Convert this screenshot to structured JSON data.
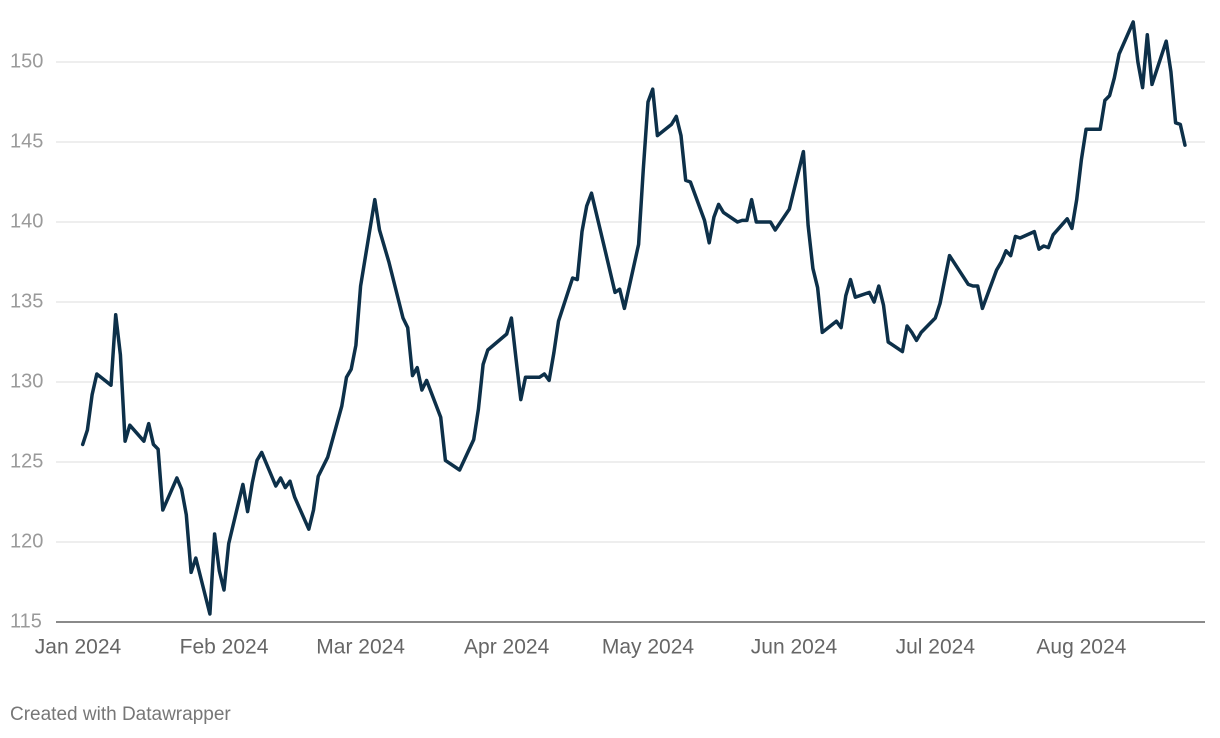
{
  "chart_data": {
    "type": "line",
    "x": [
      1,
      2,
      3,
      4,
      7,
      8,
      9,
      10,
      11,
      14,
      15,
      16,
      17,
      18,
      21,
      22,
      23,
      24,
      25,
      28,
      29,
      30,
      31,
      32,
      35,
      36,
      37,
      38,
      39,
      42,
      43,
      44,
      45,
      46,
      49,
      50,
      51,
      53,
      56,
      57,
      58,
      59,
      60,
      63,
      64,
      66,
      69,
      70,
      71,
      72,
      73,
      74,
      77,
      78,
      81,
      84,
      85,
      86,
      87,
      91,
      92,
      93,
      94,
      95,
      98,
      99,
      100,
      101,
      102,
      105,
      106,
      107,
      108,
      109,
      112,
      114,
      115,
      116,
      119,
      120,
      121,
      122,
      123,
      126,
      127,
      128,
      129,
      130,
      133,
      134,
      135,
      136,
      137,
      140,
      141,
      142,
      143,
      144,
      147,
      148,
      151,
      152,
      154,
      155,
      156,
      157,
      158,
      161,
      162,
      163,
      164,
      165,
      168,
      169,
      170,
      171,
      172,
      175,
      176,
      177,
      178,
      179,
      182,
      183,
      185,
      189,
      190,
      191,
      192,
      195,
      196,
      197,
      198,
      199,
      200,
      203,
      204,
      205,
      206,
      207,
      210,
      211,
      212,
      213,
      214,
      217,
      218,
      219,
      220,
      221,
      224,
      225,
      226,
      227,
      228,
      231,
      232,
      233,
      234,
      235
    ],
    "values": [
      126.1,
      127.0,
      129.2,
      130.5,
      129.8,
      134.2,
      131.7,
      126.3,
      127.3,
      126.3,
      127.4,
      126.1,
      125.8,
      122.0,
      124.0,
      123.3,
      121.7,
      118.1,
      119.0,
      115.5,
      120.5,
      118.2,
      117.0,
      119.9,
      123.6,
      121.9,
      123.7,
      125.1,
      125.6,
      123.5,
      124.0,
      123.4,
      123.8,
      122.8,
      120.8,
      122.0,
      124.1,
      125.3,
      128.5,
      130.3,
      130.8,
      132.3,
      136.0,
      141.4,
      139.5,
      137.5,
      134.0,
      133.4,
      130.4,
      130.9,
      129.5,
      130.1,
      127.8,
      125.1,
      124.5,
      126.4,
      128.3,
      131.1,
      132.0,
      133.0,
      134.0,
      131.4,
      128.9,
      130.3,
      130.3,
      130.5,
      130.1,
      131.8,
      133.8,
      136.5,
      136.4,
      139.4,
      141.0,
      141.8,
      138.1,
      135.6,
      135.8,
      134.6,
      138.6,
      143.3,
      147.5,
      148.3,
      145.4,
      146.1,
      146.6,
      145.4,
      142.6,
      142.5,
      140.1,
      138.7,
      140.3,
      141.1,
      140.6,
      140.0,
      140.1,
      140.1,
      141.4,
      140.0,
      140.0,
      139.5,
      140.8,
      142.0,
      144.4,
      139.8,
      137.1,
      135.9,
      133.1,
      133.8,
      133.4,
      135.4,
      136.4,
      135.3,
      135.6,
      135.0,
      136.0,
      134.8,
      132.5,
      131.9,
      133.5,
      133.1,
      132.6,
      133.1,
      134.0,
      134.9,
      137.9,
      136.1,
      136.0,
      136.0,
      134.6,
      137.0,
      137.5,
      138.2,
      137.9,
      139.1,
      139.0,
      139.4,
      138.3,
      138.5,
      138.4,
      139.2,
      140.2,
      139.6,
      141.4,
      143.9,
      145.8,
      145.8,
      147.6,
      147.9,
      149.0,
      150.5,
      152.5,
      150.0,
      148.4,
      151.7,
      148.6,
      151.3,
      149.4,
      146.2,
      146.1,
      144.8
    ],
    "color": "#0d3049",
    "xlim": [
      0,
      235
    ],
    "xticks": [
      {
        "value": 0,
        "label": "Jan 2024"
      },
      {
        "value": 31,
        "label": "Feb 2024"
      },
      {
        "value": 60,
        "label": "Mar 2024"
      },
      {
        "value": 91,
        "label": "Apr 2024"
      },
      {
        "value": 121,
        "label": "May 2024"
      },
      {
        "value": 152,
        "label": "Jun 2024"
      },
      {
        "value": 182,
        "label": "Jul 2024"
      },
      {
        "value": 213,
        "label": "Aug 2024"
      }
    ],
    "ylim": [
      115,
      150
    ],
    "yticks": [
      115,
      120,
      125,
      130,
      135,
      140,
      145,
      150
    ],
    "grid": true,
    "footer": "Created with Datawrapper"
  }
}
